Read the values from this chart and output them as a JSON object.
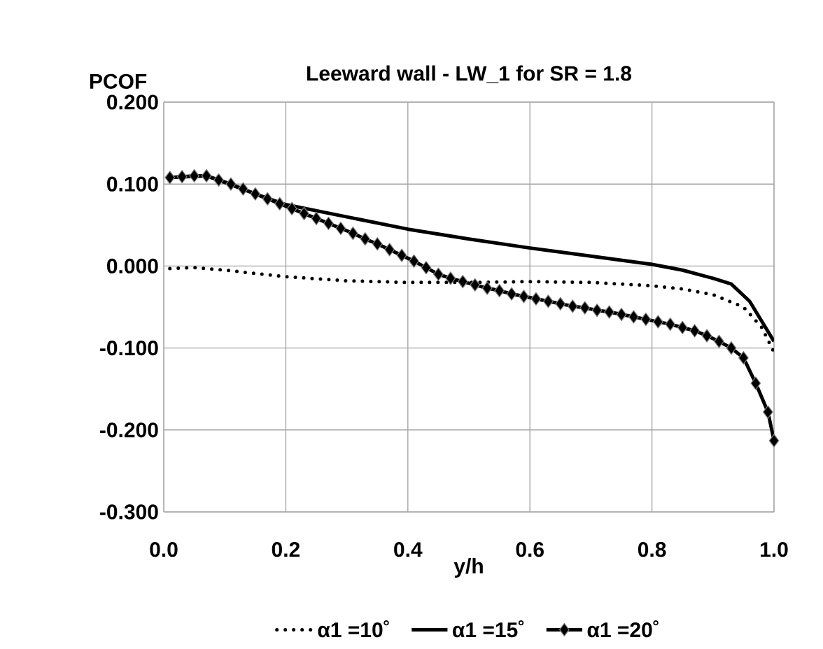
{
  "chart_data": {
    "type": "line",
    "title": "Leeward wall - LW_1 for SR = 1.8",
    "xlabel": "y/h",
    "ylabel": "PCOF",
    "xlim": [
      0,
      1
    ],
    "xticks": [
      {
        "value": 0,
        "label": "0.0"
      },
      {
        "value": 0.2,
        "label": "0.2"
      },
      {
        "value": 0.4,
        "label": "0.4"
      },
      {
        "value": 0.6,
        "label": "0.6"
      },
      {
        "value": 0.8,
        "label": "0.8"
      },
      {
        "value": 1,
        "label": "1.0"
      }
    ],
    "ylim": [
      -0.3,
      0.2
    ],
    "yticks": [
      {
        "value": -0.3,
        "label": "-0.300"
      },
      {
        "value": -0.2,
        "label": "-0.200"
      },
      {
        "value": -0.1,
        "label": "-0.100"
      },
      {
        "value": 0,
        "label": "0.000"
      },
      {
        "value": 0.1,
        "label": "0.100"
      },
      {
        "value": 0.2,
        "label": "0.200"
      }
    ],
    "grid": true,
    "legend": "bottom",
    "series": [
      {
        "name": "α1 =10˚",
        "color": "#000000",
        "marker": "none",
        "line_style": "dotted",
        "x": [
          0.01,
          0.05,
          0.1,
          0.15,
          0.2,
          0.3,
          0.4,
          0.5,
          0.6,
          0.7,
          0.8,
          0.85,
          0.9,
          0.95,
          0.98,
          1.0
        ],
        "values": [
          -0.003,
          -0.002,
          -0.005,
          -0.009,
          -0.013,
          -0.018,
          -0.02,
          -0.02,
          -0.019,
          -0.02,
          -0.024,
          -0.028,
          -0.035,
          -0.05,
          -0.075,
          -0.105
        ]
      },
      {
        "name": "α1 =15˚",
        "color": "#000000",
        "marker": "none",
        "line_style": "solid",
        "x": [
          0.01,
          0.07,
          0.1,
          0.15,
          0.2,
          0.3,
          0.4,
          0.5,
          0.6,
          0.7,
          0.8,
          0.85,
          0.9,
          0.93,
          0.96,
          1.0
        ],
        "values": [
          0.108,
          0.11,
          0.102,
          0.088,
          0.075,
          0.06,
          0.045,
          0.033,
          0.022,
          0.012,
          0.002,
          -0.005,
          -0.015,
          -0.022,
          -0.043,
          -0.092
        ]
      },
      {
        "name": "α1 =20˚",
        "color": "#000000",
        "marker": "diamond",
        "line_style": "solid",
        "x": [
          0.01,
          0.03,
          0.05,
          0.07,
          0.09,
          0.11,
          0.13,
          0.15,
          0.17,
          0.19,
          0.21,
          0.23,
          0.25,
          0.27,
          0.29,
          0.31,
          0.33,
          0.35,
          0.37,
          0.39,
          0.41,
          0.43,
          0.45,
          0.47,
          0.49,
          0.51,
          0.53,
          0.55,
          0.57,
          0.59,
          0.61,
          0.63,
          0.65,
          0.67,
          0.69,
          0.71,
          0.73,
          0.75,
          0.77,
          0.79,
          0.81,
          0.83,
          0.85,
          0.87,
          0.89,
          0.91,
          0.93,
          0.95,
          0.97,
          0.99,
          1.0
        ],
        "values": [
          0.108,
          0.109,
          0.11,
          0.11,
          0.105,
          0.1,
          0.094,
          0.088,
          0.082,
          0.076,
          0.07,
          0.064,
          0.058,
          0.052,
          0.046,
          0.04,
          0.033,
          0.027,
          0.02,
          0.013,
          0.006,
          -0.002,
          -0.01,
          -0.015,
          -0.019,
          -0.023,
          -0.027,
          -0.03,
          -0.034,
          -0.037,
          -0.04,
          -0.043,
          -0.046,
          -0.049,
          -0.051,
          -0.054,
          -0.056,
          -0.059,
          -0.062,
          -0.065,
          -0.068,
          -0.071,
          -0.075,
          -0.079,
          -0.085,
          -0.092,
          -0.1,
          -0.112,
          -0.143,
          -0.178,
          -0.213
        ]
      }
    ]
  }
}
